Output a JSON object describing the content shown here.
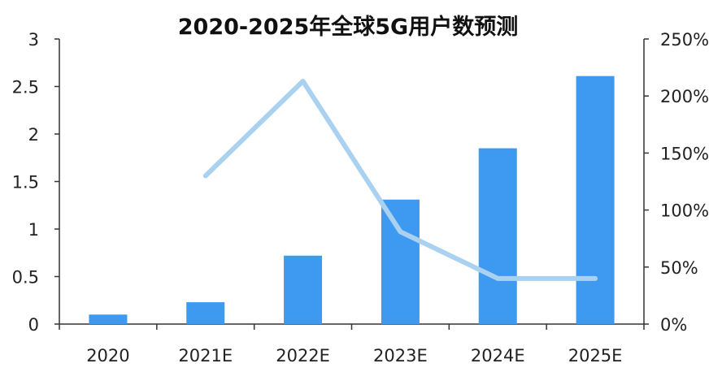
{
  "chart_data": {
    "type": "bar",
    "title": "2020-2025年全球5G用户数预测",
    "categories": [
      "2020",
      "2021E",
      "2022E",
      "2023E",
      "2024E",
      "2025E"
    ],
    "series": [
      {
        "axis": "left",
        "type": "bar",
        "color": "#3d9af0",
        "values": [
          0.1,
          0.23,
          0.72,
          1.31,
          1.85,
          2.61
        ]
      },
      {
        "axis": "right",
        "type": "line",
        "color": "#aad2f0",
        "values": [
          null,
          130,
          213,
          81,
          40,
          40
        ]
      }
    ],
    "ylim_left": [
      0,
      3
    ],
    "yticks_left": [
      "0",
      "0.5",
      "1",
      "1.5",
      "2",
      "2.5",
      "3"
    ],
    "ylim_right": [
      0,
      250
    ],
    "yticks_right": [
      "0%",
      "50%",
      "100%",
      "150%",
      "200%",
      "250%"
    ],
    "grid": false,
    "legend": "none"
  }
}
